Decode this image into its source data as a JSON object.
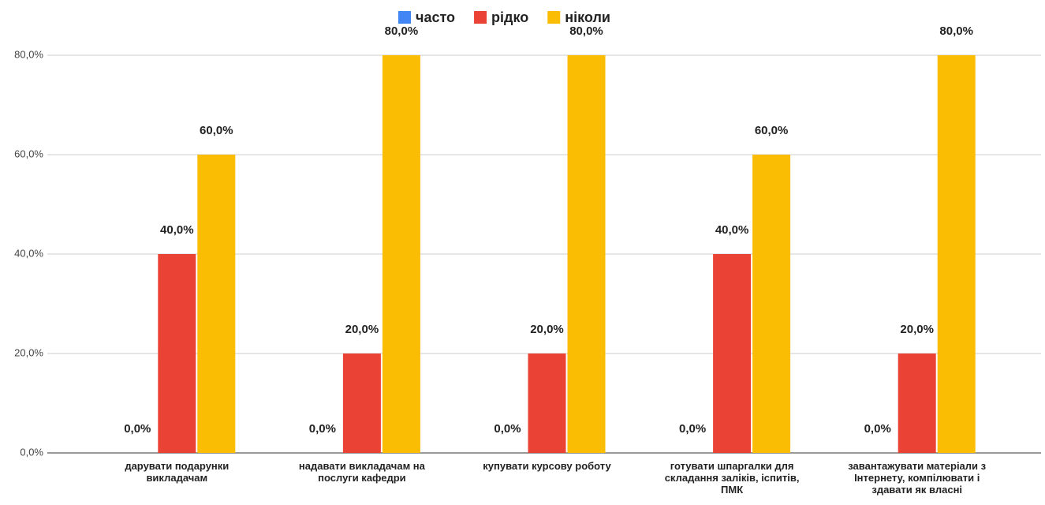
{
  "chart_data": {
    "type": "bar",
    "categories": [
      "дарувати подарунки викладачам",
      "надавати викладачам на послуги кафедри",
      "купувати курсову роботу",
      "готувати шпаргалки для складання заліків, іспитів, ПМК",
      "завантажувати матеріали з Інтернету, компілювати і здавати як власні"
    ],
    "series": [
      {
        "name": "часто",
        "color": "#4285f4",
        "values": [
          0,
          0,
          0,
          0,
          0
        ],
        "value_labels": [
          "0,0%",
          "0,0%",
          "0,0%",
          "0,0%",
          "0,0%"
        ]
      },
      {
        "name": "рідко",
        "color": "#ea4335",
        "values": [
          40,
          20,
          20,
          40,
          20
        ],
        "value_labels": [
          "40,0%",
          "20,0%",
          "20,0%",
          "40,0%",
          "20,0%"
        ]
      },
      {
        "name": "ніколи",
        "color": "#fbbc04",
        "values": [
          60,
          80,
          80,
          60,
          80
        ],
        "value_labels": [
          "60,0%",
          "80,0%",
          "80,0%",
          "60,0%",
          "80,0%"
        ]
      }
    ],
    "ylim": [
      0,
      80
    ],
    "yticks": [
      {
        "value": 0,
        "label": "0,0%"
      },
      {
        "value": 20,
        "label": "20,0%"
      },
      {
        "value": 40,
        "label": "40,0%"
      },
      {
        "value": 60,
        "label": "60,0%"
      },
      {
        "value": 80,
        "label": "80,0%"
      }
    ],
    "grid": true,
    "legend": "top"
  }
}
